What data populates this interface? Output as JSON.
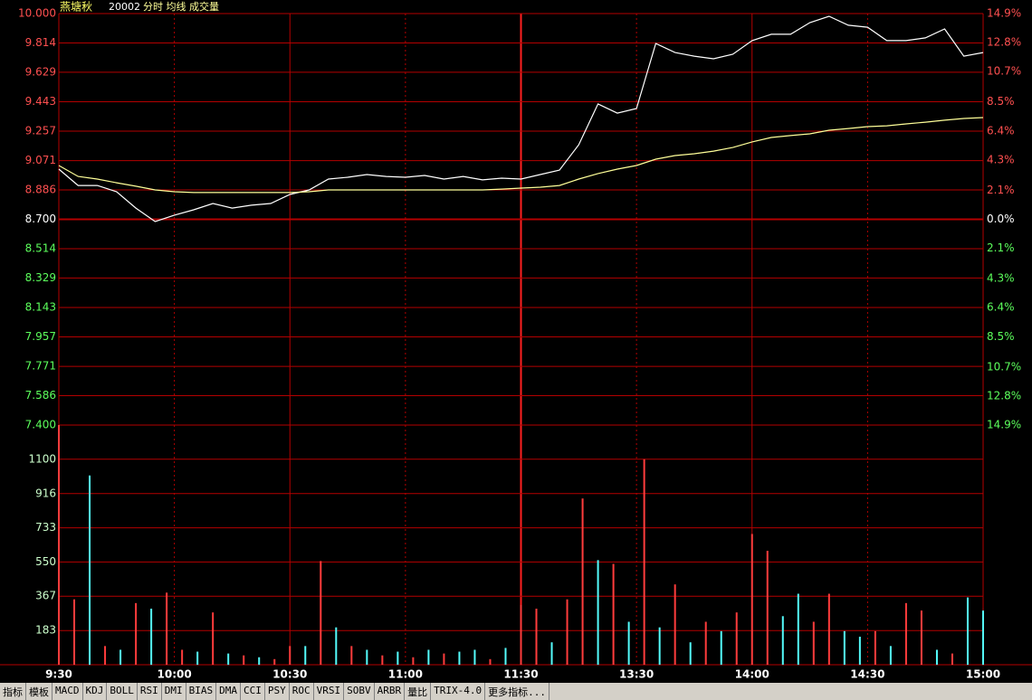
{
  "header": {
    "name": "燕塘秋",
    "code": "20002",
    "label": "分时 均线 成交量"
  },
  "tabs": [
    "指标",
    "模板",
    "MACD",
    "KDJ",
    "BOLL",
    "RSI",
    "DMI",
    "BIAS",
    "DMA",
    "CCI",
    "PSY",
    "ROC",
    "VRSI",
    "SOBV",
    "ARBR",
    "量比",
    "TRIX-4.0",
    "更多指标..."
  ],
  "chart_data": [
    {
      "type": "line",
      "x": [
        0,
        5,
        10,
        15,
        20,
        25,
        30,
        35,
        40,
        45,
        50,
        55,
        60,
        65,
        70,
        75,
        80,
        85,
        90,
        95,
        100,
        105,
        110,
        115,
        120,
        125,
        130,
        135,
        140,
        145,
        150,
        155,
        160,
        165,
        170,
        175,
        180,
        185,
        190,
        195,
        200,
        205,
        210,
        215,
        220,
        225,
        230,
        235,
        240
      ],
      "xlim": [
        0,
        240
      ],
      "xticks": [
        {
          "value": 0,
          "label": "9:30"
        },
        {
          "value": 30,
          "label": "10:00"
        },
        {
          "value": 60,
          "label": "10:30"
        },
        {
          "value": 90,
          "label": "11:00"
        },
        {
          "value": 120,
          "label": "11:30"
        },
        {
          "value": 150,
          "label": "13:30"
        },
        {
          "value": 180,
          "label": "14:00"
        },
        {
          "value": 210,
          "label": "14:30"
        },
        {
          "value": 240,
          "label": "15:00"
        }
      ],
      "series": [
        {
          "color": "#ffffff",
          "values": [
            9.017,
            8.914,
            8.914,
            8.874,
            8.771,
            8.686,
            8.726,
            8.76,
            8.8,
            8.771,
            8.789,
            8.8,
            8.857,
            8.886,
            8.954,
            8.966,
            8.983,
            8.971,
            8.966,
            8.977,
            8.954,
            8.971,
            8.949,
            8.96,
            8.954,
            8.983,
            9.011,
            9.171,
            9.429,
            9.371,
            9.4,
            9.811,
            9.754,
            9.731,
            9.714,
            9.743,
            9.829,
            9.869,
            9.869,
            9.943,
            9.983,
            9.926,
            9.914,
            9.829,
            9.829,
            9.846,
            9.903,
            9.731,
            9.754
          ]
        },
        {
          "color": "#ffff99",
          "values": [
            9.04,
            8.971,
            8.954,
            8.931,
            8.909,
            8.886,
            8.874,
            8.869,
            8.869,
            8.869,
            8.869,
            8.869,
            8.869,
            8.874,
            8.886,
            8.886,
            8.886,
            8.886,
            8.886,
            8.886,
            8.886,
            8.886,
            8.886,
            8.891,
            8.897,
            8.903,
            8.914,
            8.954,
            8.989,
            9.017,
            9.04,
            9.08,
            9.103,
            9.114,
            9.131,
            9.154,
            9.189,
            9.217,
            9.229,
            9.24,
            9.263,
            9.274,
            9.286,
            9.291,
            9.303,
            9.314,
            9.326,
            9.337,
            9.343
          ]
        }
      ],
      "ylim": [
        7.4,
        10
      ],
      "yticks": [
        {
          "value": 10,
          "label": "10.000"
        },
        9.814,
        9.629,
        9.443,
        9.257,
        9.071,
        8.886,
        {
          "value": 8.7,
          "label": "8.700"
        },
        8.514,
        8.329,
        8.143,
        7.957,
        7.771,
        7.586,
        {
          "value": 7.4,
          "label": "7.400"
        }
      ],
      "y2lim": [
        -14.9,
        14.9
      ],
      "y2ticks": [
        {
          "value": 14.9,
          "label": "14.9%"
        },
        {
          "value": 12.8,
          "label": "12.8%"
        },
        {
          "value": 10.7,
          "label": "10.7%"
        },
        {
          "value": 8.5,
          "label": "8.5%"
        },
        {
          "value": 6.4,
          "label": "6.4%"
        },
        {
          "value": 4.3,
          "label": "4.3%"
        },
        {
          "value": 2.1,
          "label": "2.1%"
        },
        {
          "value": 0,
          "label": "0.0%"
        },
        {
          "value": -2.1,
          "label": "2.1%"
        },
        {
          "value": -4.3,
          "label": "4.3%"
        },
        {
          "value": -6.4,
          "label": "6.4%"
        },
        {
          "value": -8.5,
          "label": "8.5%"
        },
        {
          "value": -10.7,
          "label": "10.7%"
        },
        {
          "value": -12.8,
          "label": "12.8%"
        },
        {
          "value": -14.9,
          "label": "14.9%"
        }
      ],
      "grid": true
    },
    {
      "type": "bar",
      "x": [
        0,
        4,
        8,
        12,
        16,
        20,
        24,
        28,
        32,
        36,
        40,
        44,
        48,
        52,
        56,
        60,
        64,
        68,
        72,
        76,
        80,
        84,
        88,
        92,
        96,
        100,
        104,
        108,
        112,
        116,
        120,
        124,
        128,
        132,
        136,
        140,
        144,
        148,
        152,
        156,
        160,
        164,
        168,
        172,
        176,
        180,
        184,
        188,
        192,
        196,
        200,
        204,
        208,
        212,
        216,
        220,
        224,
        228,
        232,
        236,
        240
      ],
      "xlim": [
        0,
        240
      ],
      "values": [
        1283,
        350,
        1013,
        100,
        80,
        330,
        300,
        386,
        80,
        70,
        280,
        60,
        50,
        40,
        30,
        100,
        100,
        555,
        200,
        100,
        80,
        50,
        70,
        40,
        80,
        60,
        70,
        80,
        30,
        90,
        320,
        300,
        120,
        350,
        890,
        560,
        540,
        230,
        1100,
        200,
        430,
        120,
        230,
        180,
        280,
        700,
        610,
        260,
        380,
        230,
        380,
        180,
        150,
        180,
        100,
        330,
        290,
        80,
        60,
        360,
        290
      ],
      "colors": [
        "#ff3c3c",
        "#ff3c3c",
        "#54fcfc",
        "#ff3c3c",
        "#54fcfc",
        "#ff3c3c",
        "#54fcfc",
        "#ff3c3c",
        "#ff3c3c",
        "#54fcfc",
        "#ff3c3c",
        "#54fcfc",
        "#ff3c3c",
        "#54fcfc",
        "#ff3c3c",
        "#ff3c3c",
        "#54fcfc",
        "#ff3c3c",
        "#54fcfc",
        "#ff3c3c",
        "#54fcfc",
        "#ff3c3c",
        "#54fcfc",
        "#ff3c3c",
        "#54fcfc",
        "#ff3c3c",
        "#54fcfc",
        "#54fcfc",
        "#ff3c3c",
        "#54fcfc",
        "#ff3c3c",
        "#ff3c3c",
        "#54fcfc",
        "#ff3c3c",
        "#ff3c3c",
        "#54fcfc",
        "#ff3c3c",
        "#54fcfc",
        "#ff3c3c",
        "#54fcfc",
        "#ff3c3c",
        "#54fcfc",
        "#ff3c3c",
        "#54fcfc",
        "#ff3c3c",
        "#ff3c3c",
        "#ff3c3c",
        "#54fcfc",
        "#54fcfc",
        "#ff3c3c",
        "#ff3c3c",
        "#54fcfc",
        "#54fcfc",
        "#ff3c3c",
        "#54fcfc",
        "#ff3c3c",
        "#ff3c3c",
        "#54fcfc",
        "#ff3c3c",
        "#54fcfc",
        "#54fcfc"
      ],
      "ylim": [
        0,
        1283
      ],
      "yticks": [
        183,
        367,
        550,
        733,
        916,
        1100
      ],
      "grid": true
    }
  ]
}
